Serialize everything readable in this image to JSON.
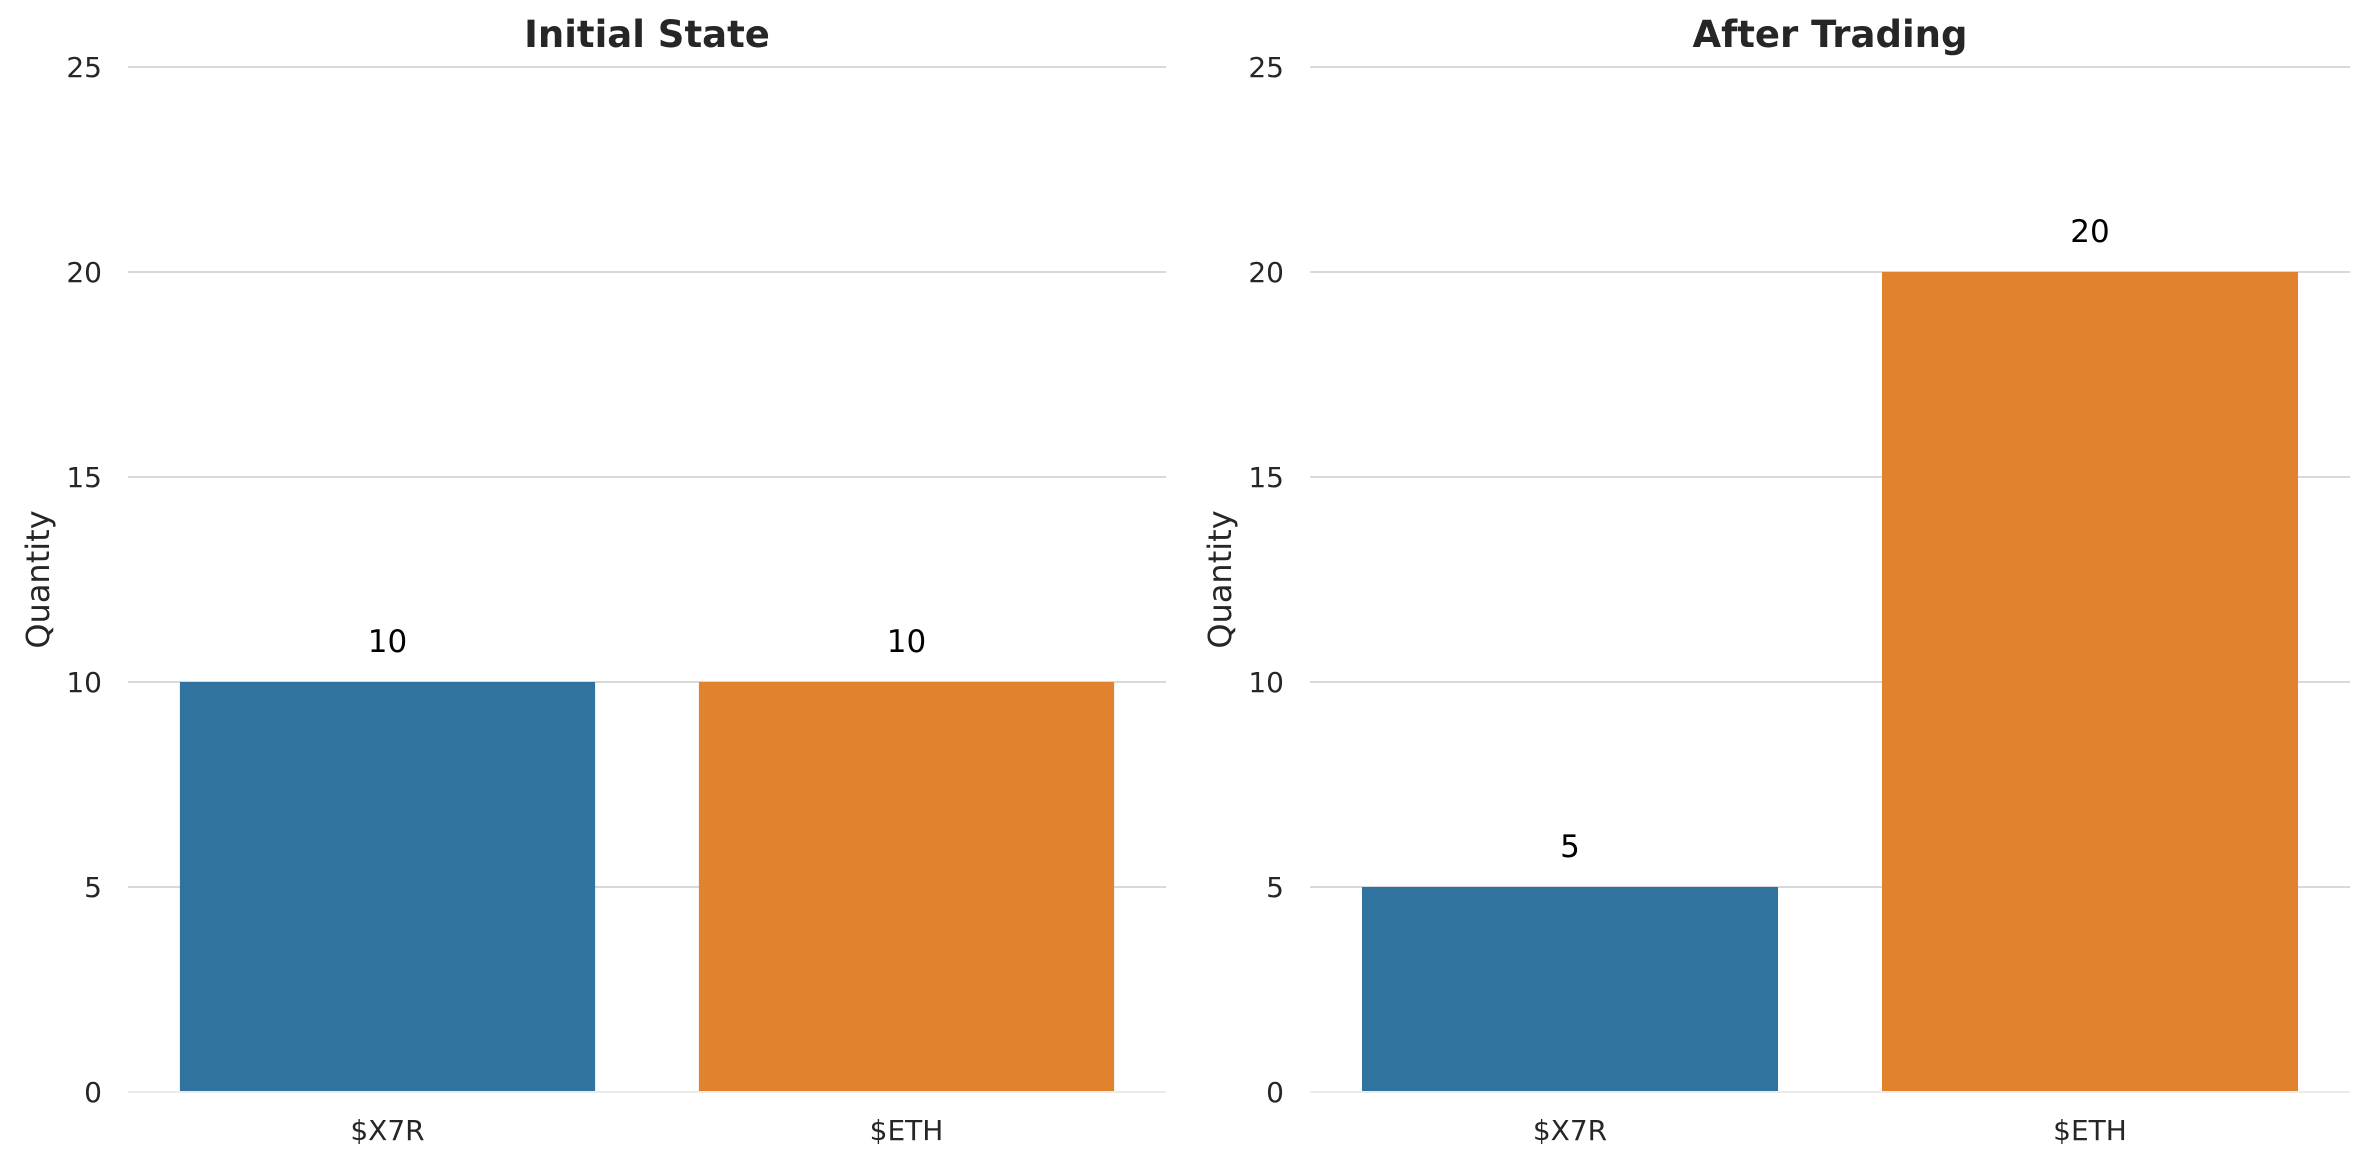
{
  "chart_data": [
    {
      "type": "bar",
      "title": "Initial State",
      "ylabel": "Quantity",
      "xlabel": "",
      "categories": [
        "$X7R",
        "$ETH"
      ],
      "values": [
        10,
        10
      ],
      "data_labels": [
        "10",
        "10"
      ],
      "colors": [
        "#31739f",
        "#e0822e"
      ],
      "ylim": [
        0,
        25
      ],
      "yticks": [
        0,
        5,
        10,
        15,
        20,
        25
      ],
      "ytick_labels": [
        "0",
        "5",
        "10",
        "15",
        "20",
        "25"
      ],
      "grid": true
    },
    {
      "type": "bar",
      "title": "After Trading",
      "ylabel": "Quantity",
      "xlabel": "",
      "categories": [
        "$X7R",
        "$ETH"
      ],
      "values": [
        5,
        20
      ],
      "data_labels": [
        "5",
        "20"
      ],
      "colors": [
        "#31739f",
        "#e0822e"
      ],
      "ylim": [
        0,
        25
      ],
      "yticks": [
        0,
        5,
        10,
        15,
        20,
        25
      ],
      "ytick_labels": [
        "0",
        "5",
        "10",
        "15",
        "20",
        "25"
      ],
      "grid": true
    }
  ]
}
